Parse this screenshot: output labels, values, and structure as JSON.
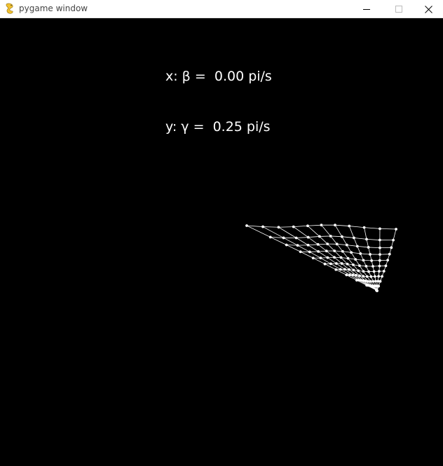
{
  "window": {
    "title": "pygame window",
    "icon": "pygame-snake-icon",
    "controls": [
      "minimize-icon",
      "maximize-icon",
      "close-icon"
    ]
  },
  "hud": {
    "line_x": "x: β =  0.00 pi/s",
    "line_y": "y: γ =  0.25 pi/s"
  },
  "colors": {
    "background": "#000000",
    "text": "#ffffff",
    "mesh": "#ffffff",
    "titlebar": "#ffffff"
  }
}
